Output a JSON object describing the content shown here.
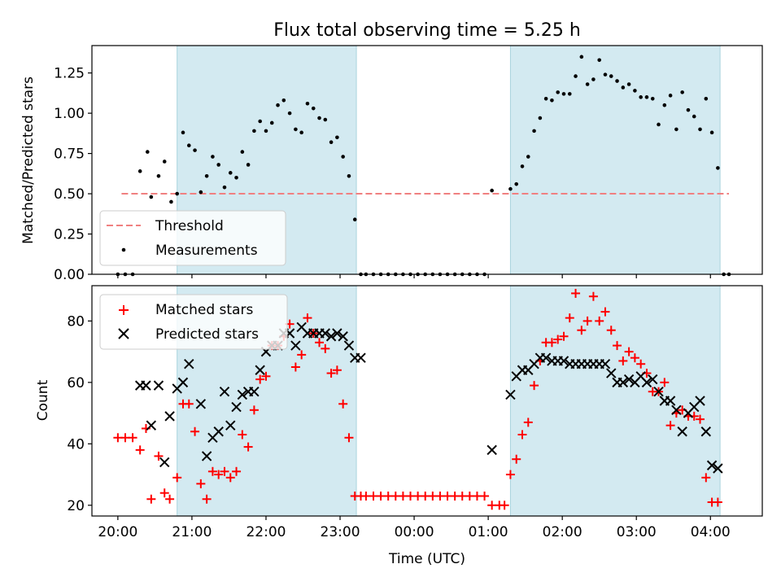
{
  "chart_data": [
    {
      "type": "scatter",
      "title": "Flux total observing time = 5.25 h",
      "ylabel": "Matched/Predicted stars",
      "xlabel": "",
      "x_unit": "hours since 20:00 UTC",
      "xlim": [
        -0.35,
        8.7
      ],
      "ylim": [
        0,
        1.42
      ],
      "yticks": [
        "0.00",
        "0.25",
        "0.50",
        "0.75",
        "1.00",
        "1.25"
      ],
      "ytick_values": [
        0,
        0.25,
        0.5,
        0.75,
        1.0,
        1.25
      ],
      "legend": {
        "placement": "lower-left",
        "entries": [
          "Threshold",
          "Measurements"
        ]
      },
      "threshold": {
        "name": "Threshold",
        "value": 0.5,
        "x_range": [
          0.05,
          8.25
        ],
        "color": "#f08080"
      },
      "shaded_intervals": [
        [
          0.8,
          3.22
        ],
        [
          5.3,
          8.13
        ]
      ],
      "series": [
        {
          "name": "Measurements",
          "color": "#000000",
          "x": [
            0.0,
            0.1,
            0.2,
            0.3,
            0.4,
            0.45,
            0.55,
            0.63,
            0.72,
            0.8,
            0.88,
            0.96,
            1.04,
            1.12,
            1.2,
            1.28,
            1.36,
            1.44,
            1.52,
            1.6,
            1.68,
            1.76,
            1.84,
            1.92,
            2.0,
            2.08,
            2.16,
            2.24,
            2.32,
            2.4,
            2.48,
            2.56,
            2.64,
            2.72,
            2.8,
            2.88,
            2.96,
            3.04,
            3.12,
            3.2,
            3.28,
            3.35,
            3.45,
            3.55,
            3.65,
            3.75,
            3.85,
            3.95,
            4.05,
            4.15,
            4.25,
            4.35,
            4.45,
            4.55,
            4.65,
            4.75,
            4.85,
            4.95,
            5.05,
            5.3,
            5.38,
            5.46,
            5.54,
            5.62,
            5.7,
            5.78,
            5.86,
            5.94,
            6.02,
            6.1,
            6.18,
            6.26,
            6.34,
            6.42,
            6.5,
            6.58,
            6.66,
            6.74,
            6.82,
            6.9,
            6.98,
            7.06,
            7.14,
            7.22,
            7.3,
            7.38,
            7.46,
            7.54,
            7.62,
            7.7,
            7.78,
            7.86,
            7.94,
            8.02,
            8.1,
            8.18,
            8.25
          ],
          "values": [
            0.0,
            0.0,
            0.0,
            0.64,
            0.76,
            0.48,
            0.61,
            0.7,
            0.45,
            0.5,
            0.88,
            0.8,
            0.77,
            0.51,
            0.61,
            0.73,
            0.68,
            0.54,
            0.63,
            0.6,
            0.76,
            0.68,
            0.89,
            0.95,
            0.89,
            0.94,
            1.05,
            1.08,
            1.0,
            0.9,
            0.88,
            1.06,
            1.03,
            0.97,
            0.96,
            0.82,
            0.85,
            0.73,
            0.61,
            0.34,
            0.0,
            0.0,
            0.0,
            0.0,
            0.0,
            0.0,
            0.0,
            0.0,
            0.0,
            0.0,
            0.0,
            0.0,
            0.0,
            0.0,
            0.0,
            0.0,
            0.0,
            0.0,
            0.52,
            0.53,
            0.56,
            0.67,
            0.73,
            0.89,
            0.97,
            1.09,
            1.08,
            1.13,
            1.12,
            1.12,
            1.23,
            1.35,
            1.18,
            1.21,
            1.33,
            1.24,
            1.23,
            1.2,
            1.16,
            1.18,
            1.14,
            1.1,
            1.1,
            1.09,
            0.93,
            1.05,
            1.11,
            0.9,
            1.13,
            1.02,
            0.98,
            0.9,
            1.09,
            0.88,
            0.66,
            0.0,
            0.0
          ]
        }
      ]
    },
    {
      "type": "scatter",
      "title": "",
      "ylabel": "Count",
      "xlabel": "Time (UTC)",
      "x_unit": "hours since 20:00 UTC",
      "xlim": [
        -0.35,
        8.7
      ],
      "ylim": [
        16.5,
        91.5
      ],
      "yticks": [
        "20",
        "40",
        "60",
        "80"
      ],
      "ytick_values": [
        20,
        40,
        60,
        80
      ],
      "xticks": [
        "20:00",
        "21:00",
        "22:00",
        "23:00",
        "00:00",
        "01:00",
        "02:00",
        "03:00",
        "04:00"
      ],
      "xtick_values": [
        0,
        1,
        2,
        3,
        4,
        5,
        6,
        7,
        8
      ],
      "legend": {
        "placement": "upper-left",
        "entries": [
          "Matched stars",
          "Predicted stars"
        ]
      },
      "shaded_intervals": [
        [
          0.8,
          3.22
        ],
        [
          5.3,
          8.13
        ]
      ],
      "series": [
        {
          "name": "Matched stars",
          "marker": "plus",
          "color": "#ff0000",
          "x": [
            0.0,
            0.1,
            0.2,
            0.3,
            0.38,
            0.45,
            0.55,
            0.63,
            0.7,
            0.8,
            0.88,
            0.96,
            1.04,
            1.12,
            1.2,
            1.28,
            1.36,
            1.44,
            1.52,
            1.6,
            1.68,
            1.76,
            1.84,
            1.92,
            2.0,
            2.08,
            2.16,
            2.24,
            2.32,
            2.4,
            2.48,
            2.56,
            2.64,
            2.72,
            2.8,
            2.88,
            2.96,
            3.04,
            3.12,
            3.2,
            3.28,
            3.35,
            3.45,
            3.55,
            3.65,
            3.75,
            3.85,
            3.95,
            4.05,
            4.15,
            4.25,
            4.35,
            4.45,
            4.55,
            4.65,
            4.75,
            4.85,
            4.95,
            5.05,
            5.15,
            5.22,
            5.3,
            5.38,
            5.46,
            5.54,
            5.62,
            5.7,
            5.78,
            5.86,
            5.94,
            6.02,
            6.1,
            6.18,
            6.26,
            6.34,
            6.42,
            6.5,
            6.58,
            6.66,
            6.74,
            6.82,
            6.9,
            6.98,
            7.06,
            7.14,
            7.22,
            7.3,
            7.38,
            7.46,
            7.54,
            7.62,
            7.7,
            7.78,
            7.86,
            7.94,
            8.02,
            8.1,
            8.18,
            8.25
          ],
          "values": [
            42,
            42,
            42,
            38,
            45,
            22,
            36,
            24,
            22,
            29,
            53,
            53,
            44,
            27,
            22,
            31,
            30,
            31,
            29,
            31,
            43,
            39,
            51,
            61,
            62,
            72,
            72,
            75,
            79,
            65,
            69,
            81,
            76,
            73,
            71,
            63,
            64,
            53,
            42,
            23,
            23,
            23,
            23,
            23,
            23,
            23,
            23,
            23,
            23,
            23,
            23,
            23,
            23,
            23,
            23,
            23,
            23,
            23,
            20,
            20,
            20,
            30,
            35,
            43,
            47,
            59,
            67,
            73,
            73,
            74,
            75,
            81,
            89,
            77,
            80,
            88,
            80,
            83,
            77,
            72,
            67,
            70,
            68,
            66,
            63,
            57,
            57,
            60,
            46,
            50,
            51,
            49,
            49,
            48,
            29,
            21,
            21,
            null,
            null
          ]
        },
        {
          "name": "Predicted stars",
          "marker": "x",
          "color": "#000000",
          "x": [
            0.3,
            0.38,
            0.45,
            0.55,
            0.63,
            0.7,
            0.8,
            0.88,
            0.96,
            1.12,
            1.2,
            1.28,
            1.36,
            1.44,
            1.52,
            1.6,
            1.68,
            1.76,
            1.84,
            1.92,
            2.0,
            2.08,
            2.16,
            2.24,
            2.32,
            2.4,
            2.48,
            2.56,
            2.64,
            2.72,
            2.8,
            2.88,
            2.96,
            3.04,
            3.12,
            3.2,
            3.28,
            5.05,
            5.3,
            5.38,
            5.46,
            5.54,
            5.62,
            5.7,
            5.78,
            5.86,
            5.94,
            6.02,
            6.1,
            6.18,
            6.26,
            6.34,
            6.42,
            6.5,
            6.58,
            6.66,
            6.74,
            6.82,
            6.9,
            6.98,
            7.06,
            7.14,
            7.22,
            7.3,
            7.38,
            7.46,
            7.54,
            7.62,
            7.7,
            7.78,
            7.86,
            7.94,
            8.02,
            8.1,
            8.18
          ],
          "values": [
            59,
            59,
            46,
            59,
            34,
            49,
            58,
            60,
            66,
            53,
            36,
            42,
            44,
            57,
            46,
            52,
            56,
            57,
            57,
            64,
            70,
            72,
            72,
            76,
            76,
            72,
            78,
            76,
            76,
            76,
            76,
            75,
            76,
            75,
            72,
            68,
            68,
            38,
            56,
            62,
            64,
            64,
            66,
            68,
            68,
            67,
            67,
            67,
            66,
            66,
            66,
            66,
            66,
            66,
            66,
            63,
            60,
            60,
            61,
            60,
            62,
            60,
            61,
            57,
            54,
            54,
            51,
            44,
            50,
            52,
            54,
            44,
            33,
            32,
            null
          ]
        }
      ]
    }
  ]
}
